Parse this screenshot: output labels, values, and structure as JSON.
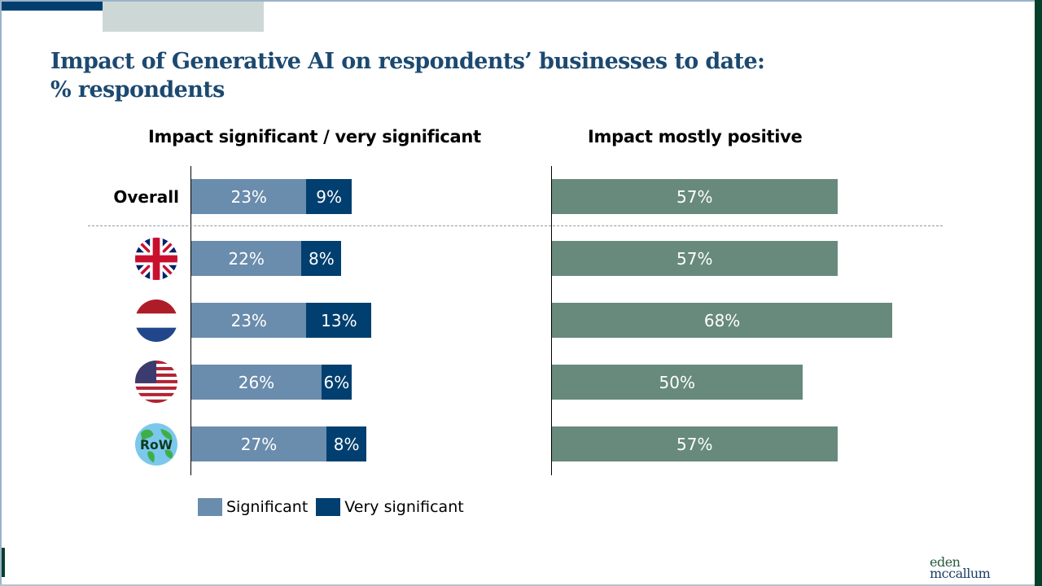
{
  "title": {
    "line1": "Impact of Generative AI on respondents’ businesses to date:",
    "line2": "% respondents"
  },
  "logo": {
    "line1": "eden",
    "line2": "mccallum"
  },
  "colors": {
    "significant": "#6a8cad",
    "very_significant": "#003f6f",
    "mostly_positive": "#678a7c",
    "title": "#1c4970",
    "brand_dark_green": "#06402b"
  },
  "legend": {
    "significant": "Significant",
    "very_significant": "Very significant"
  },
  "chart_data": [
    {
      "type": "bar",
      "orientation": "horizontal",
      "stacked": true,
      "title": "Impact significant / very significant",
      "categories": [
        "Overall",
        "UK",
        "Netherlands",
        "USA",
        "RoW"
      ],
      "category_icons": [
        "text",
        "uk-flag-icon",
        "netherlands-flag-icon",
        "usa-flag-icon",
        "globe-row-icon"
      ],
      "series": [
        {
          "name": "Significant",
          "values": [
            23,
            22,
            23,
            26,
            27
          ],
          "labels": [
            "23%",
            "22%",
            "23%",
            "26%",
            "27%"
          ]
        },
        {
          "name": "Very significant",
          "values": [
            9,
            8,
            13,
            6,
            8
          ],
          "labels": [
            "9%",
            "8%",
            "13%",
            "6%",
            "8%"
          ]
        }
      ],
      "xlim": [
        0,
        100
      ],
      "grid": false,
      "legend_position": "bottom-left"
    },
    {
      "type": "bar",
      "orientation": "horizontal",
      "title": "Impact mostly positive",
      "categories": [
        "Overall",
        "UK",
        "Netherlands",
        "USA",
        "RoW"
      ],
      "series": [
        {
          "name": "Mostly positive",
          "values": [
            57,
            57,
            68,
            50,
            57
          ],
          "labels": [
            "57%",
            "57%",
            "68%",
            "50%",
            "57%"
          ]
        }
      ],
      "xlim": [
        0,
        100
      ],
      "grid": false
    }
  ],
  "row_labels": {
    "overall": "Overall",
    "row_badge": "RoW"
  }
}
